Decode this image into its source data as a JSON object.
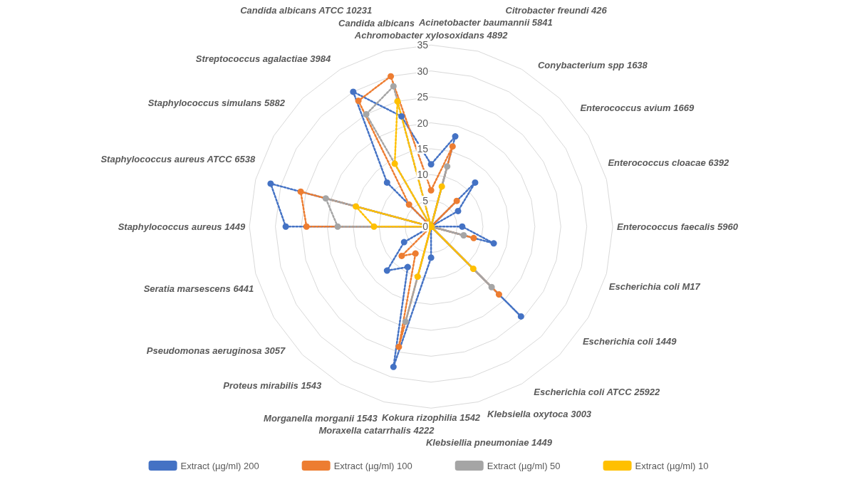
{
  "chart_data": {
    "type": "radar",
    "categories": [
      "Achromobacter xylosoxidans 4892",
      "Acinetobacter baumannii 5841",
      "Citrobacter freundi 426",
      "Conybacterium spp 1638",
      "Enterococcus avium 1669",
      "Enterococcus cloacae 6392",
      "Enterococcus faecalis 5960",
      "Escherichia coli M17",
      "Escherichia coli 1449",
      "Escherichia coli ATCC 25922",
      "Klebsiella oxytoca 3003",
      "Klebsiellia pneumoniae 1449",
      "Kokura rizophilia 1542",
      "Moraxella catarrhalis 4222",
      "Morganella morganii 1543",
      "Proteus mirabilis 1543",
      "Pseudomonas aeruginosa 3057",
      "Seratia marsescens 6441",
      "Staphylococcus aureus 1449",
      "Staphylococcus aureus ATCC 6538",
      "Staphylococcus simulans 5882",
      "Streptococcus agalactiae 3984",
      "Candida albicans ATCC 10231",
      "Candida albicans"
    ],
    "series": [
      {
        "name": "Extract (µg/ml) 200",
        "color": "#4472c4",
        "values": [
          12,
          18,
          0,
          12,
          6,
          0,
          6,
          12.5,
          0,
          24.5,
          0,
          0,
          6,
          28,
          9,
          12,
          6,
          0,
          28,
          32,
          0,
          12,
          30,
          22
        ]
      },
      {
        "name": "Extract (µg/ml) 100",
        "color": "#ed7d31",
        "values": [
          7,
          16,
          0,
          7,
          0,
          0,
          0,
          8.5,
          0,
          18.5,
          0,
          0,
          0,
          24,
          6,
          8,
          0,
          0,
          24,
          26,
          0,
          6,
          28,
          30
        ]
      },
      {
        "name": "Extract (µg/ml) 50",
        "color": "#a5a5a5",
        "values": [
          0,
          12,
          0,
          0,
          0,
          0,
          0,
          6.5,
          0,
          16.5,
          0,
          0,
          0,
          19,
          0,
          0,
          0,
          0,
          18,
          21,
          0,
          0,
          25,
          28
        ]
      },
      {
        "name": "Extract (µg/ml) 10",
        "color": "#ffc000",
        "values": [
          0,
          8,
          0,
          0,
          0,
          0,
          0,
          0,
          0,
          11.5,
          0,
          0,
          0,
          10,
          0,
          0,
          0,
          0,
          11,
          15,
          0,
          0,
          14,
          25
        ]
      }
    ],
    "ylim": [
      0,
      35
    ],
    "yticks": [
      0,
      5,
      10,
      15,
      20,
      25,
      30,
      35
    ],
    "grid": true,
    "legend": "bottom",
    "marker": "circle",
    "line_style": "dotted"
  }
}
